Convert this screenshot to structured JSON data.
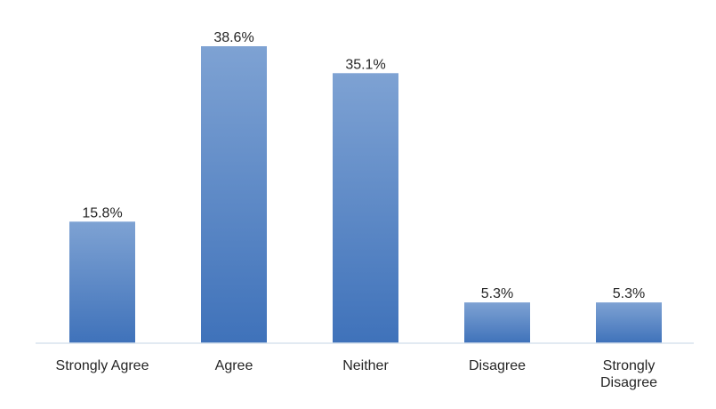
{
  "chart_data": {
    "type": "bar",
    "categories": [
      "Strongly Agree",
      "Agree",
      "Neither",
      "Disagree",
      "Strongly Disagree"
    ],
    "values": [
      15.8,
      38.6,
      35.1,
      5.3,
      5.3
    ],
    "data_labels": [
      "15.8%",
      "38.6%",
      "35.1%",
      "5.3%",
      "5.3%"
    ],
    "title": "",
    "xlabel": "",
    "ylabel": "",
    "ylim": [
      0,
      38.6
    ],
    "grid": false,
    "legend": "none",
    "colors": {
      "bar_top": "#7ea2d3",
      "bar_bottom": "#3f72ba",
      "baseline": "#d9e3ee",
      "text": "#262626"
    }
  }
}
